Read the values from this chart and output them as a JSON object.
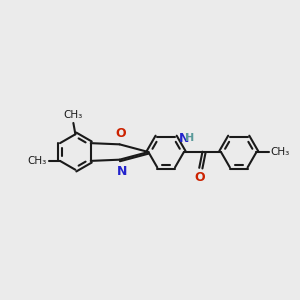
{
  "background_color": "#ebebeb",
  "bond_color": "#1a1a1a",
  "bond_width": 1.5,
  "atom_colors": {
    "N": "#2222cc",
    "O_red": "#cc2200",
    "O_carbonyl": "#cc2200",
    "H": "#5a9a9a",
    "C": "#1a1a1a"
  },
  "font_size_atom": 8.5,
  "font_size_methyl": 7.5,
  "xlim": [
    -0.5,
    6.8
  ],
  "ylim": [
    -1.4,
    1.6
  ]
}
